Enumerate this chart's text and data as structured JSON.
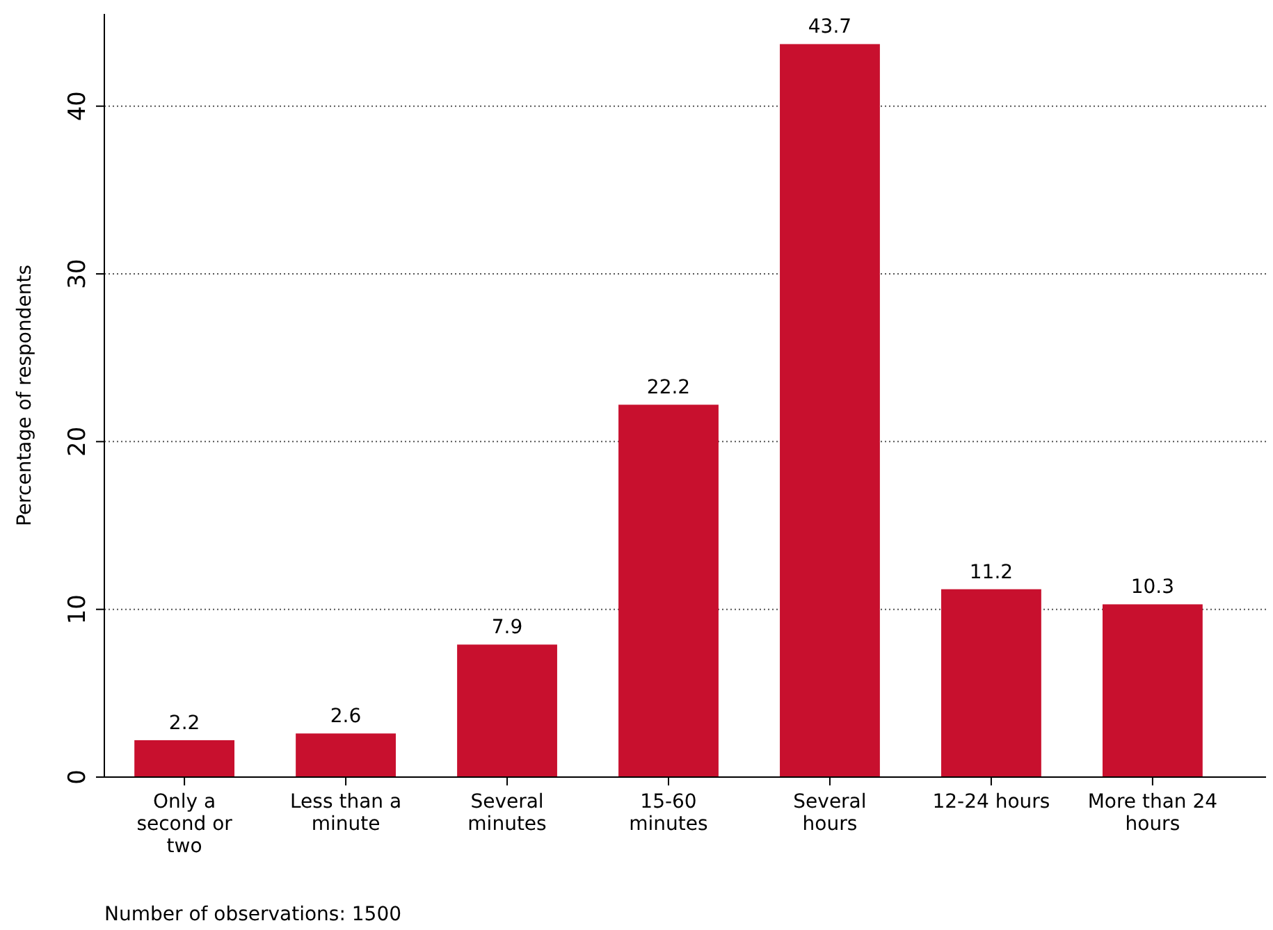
{
  "chart_data": {
    "type": "bar",
    "ylabel": "Percentage of respondents",
    "categories": [
      "Only a second or two",
      "Less than a minute",
      "Several minutes",
      "15-60 minutes",
      "Several hours",
      "12-24 hours",
      "More than 24 hours"
    ],
    "values": [
      2.2,
      2.6,
      7.9,
      22.2,
      43.7,
      11.2,
      10.3
    ],
    "color": "#c8102e",
    "ylim": [
      0,
      45.5
    ],
    "yticks": [
      0,
      10,
      20,
      30,
      40
    ],
    "grid": "y",
    "data_labels": true,
    "annotations": [
      "Number of observations: 1500"
    ]
  }
}
